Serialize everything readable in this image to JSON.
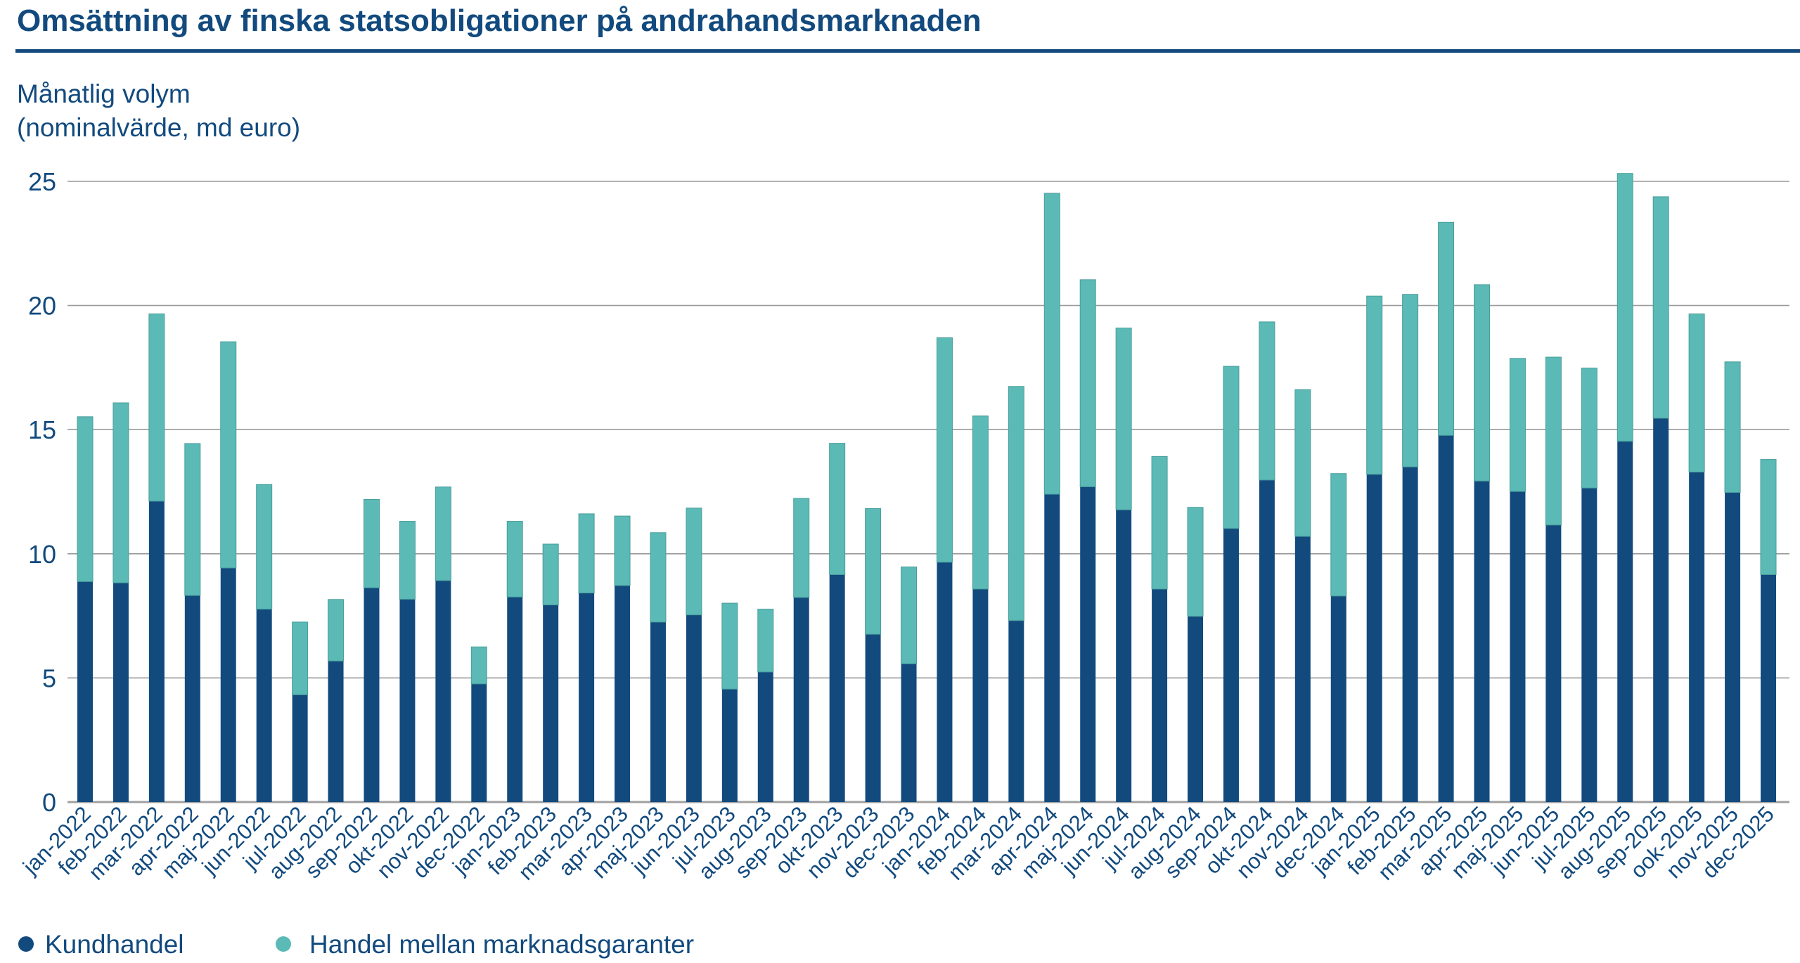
{
  "chart_data": {
    "type": "bar",
    "stacked": true,
    "title": "Omsättning av finska statsobligationer på andrahandsmarknaden",
    "ylabel_lines": [
      "Månatlig volym",
      "(nominalvärde, md euro)"
    ],
    "ylim": [
      0,
      25
    ],
    "yticks": [
      0,
      5,
      10,
      15,
      20,
      25
    ],
    "grid": true,
    "legend_position": "bottom-left",
    "categories": [
      "jan-2022",
      "feb-2022",
      "mar-2022",
      "apr-2022",
      "maj-2022",
      "jun-2022",
      "jul-2022",
      "aug-2022",
      "sep-2022",
      "okt-2022",
      "nov-2022",
      "dec-2022",
      "jan-2023",
      "feb-2023",
      "mar-2023",
      "apr-2023",
      "maj-2023",
      "jun-2023",
      "jul-2023",
      "aug-2023",
      "sep-2023",
      "okt-2023",
      "nov-2023",
      "dec-2023",
      "jan-2024",
      "feb-2024",
      "mar-2024",
      "apr-2024",
      "maj-2024",
      "jun-2024",
      "jul-2024",
      "aug-2024",
      "sep-2024",
      "okt-2024",
      "nov-2024",
      "dec-2024",
      "jan-2025",
      "feb-2025",
      "mar-2025",
      "apr-2025",
      "maj-2025",
      "jun-2025",
      "jul-2025",
      "aug-2025",
      "sep-2025",
      "ook-2025",
      "nov-2025",
      "dec-2025"
    ],
    "series": [
      {
        "name": "Kundhandel",
        "color": "#124a7e",
        "values": [
          8.88,
          8.83,
          12.12,
          8.32,
          9.43,
          7.77,
          4.32,
          5.68,
          8.63,
          8.17,
          8.92,
          4.76,
          8.26,
          7.94,
          8.42,
          8.72,
          7.25,
          7.54,
          4.55,
          5.24,
          8.24,
          9.16,
          6.76,
          5.57,
          9.66,
          8.58,
          7.31,
          12.4,
          12.7,
          11.77,
          8.58,
          7.48,
          11.02,
          12.97,
          10.7,
          8.3,
          13.2,
          13.5,
          14.77,
          12.93,
          12.51,
          11.16,
          12.65,
          14.53,
          15.46,
          13.29,
          12.47,
          9.16
        ]
      },
      {
        "name": "Handel mellan marknadsgaranter",
        "color": "#5bbab6",
        "values": [
          6.64,
          7.25,
          7.54,
          6.12,
          9.11,
          5.02,
          2.93,
          2.48,
          3.56,
          3.14,
          3.77,
          1.49,
          3.05,
          2.45,
          3.19,
          2.8,
          3.6,
          4.3,
          3.46,
          2.53,
          3.99,
          5.29,
          5.06,
          3.9,
          9.04,
          6.97,
          9.43,
          12.12,
          8.34,
          7.32,
          5.34,
          4.39,
          6.53,
          6.37,
          5.91,
          4.93,
          7.18,
          6.95,
          8.58,
          7.91,
          5.36,
          6.76,
          4.83,
          10.79,
          8.92,
          6.37,
          5.26,
          4.64
        ]
      }
    ]
  }
}
